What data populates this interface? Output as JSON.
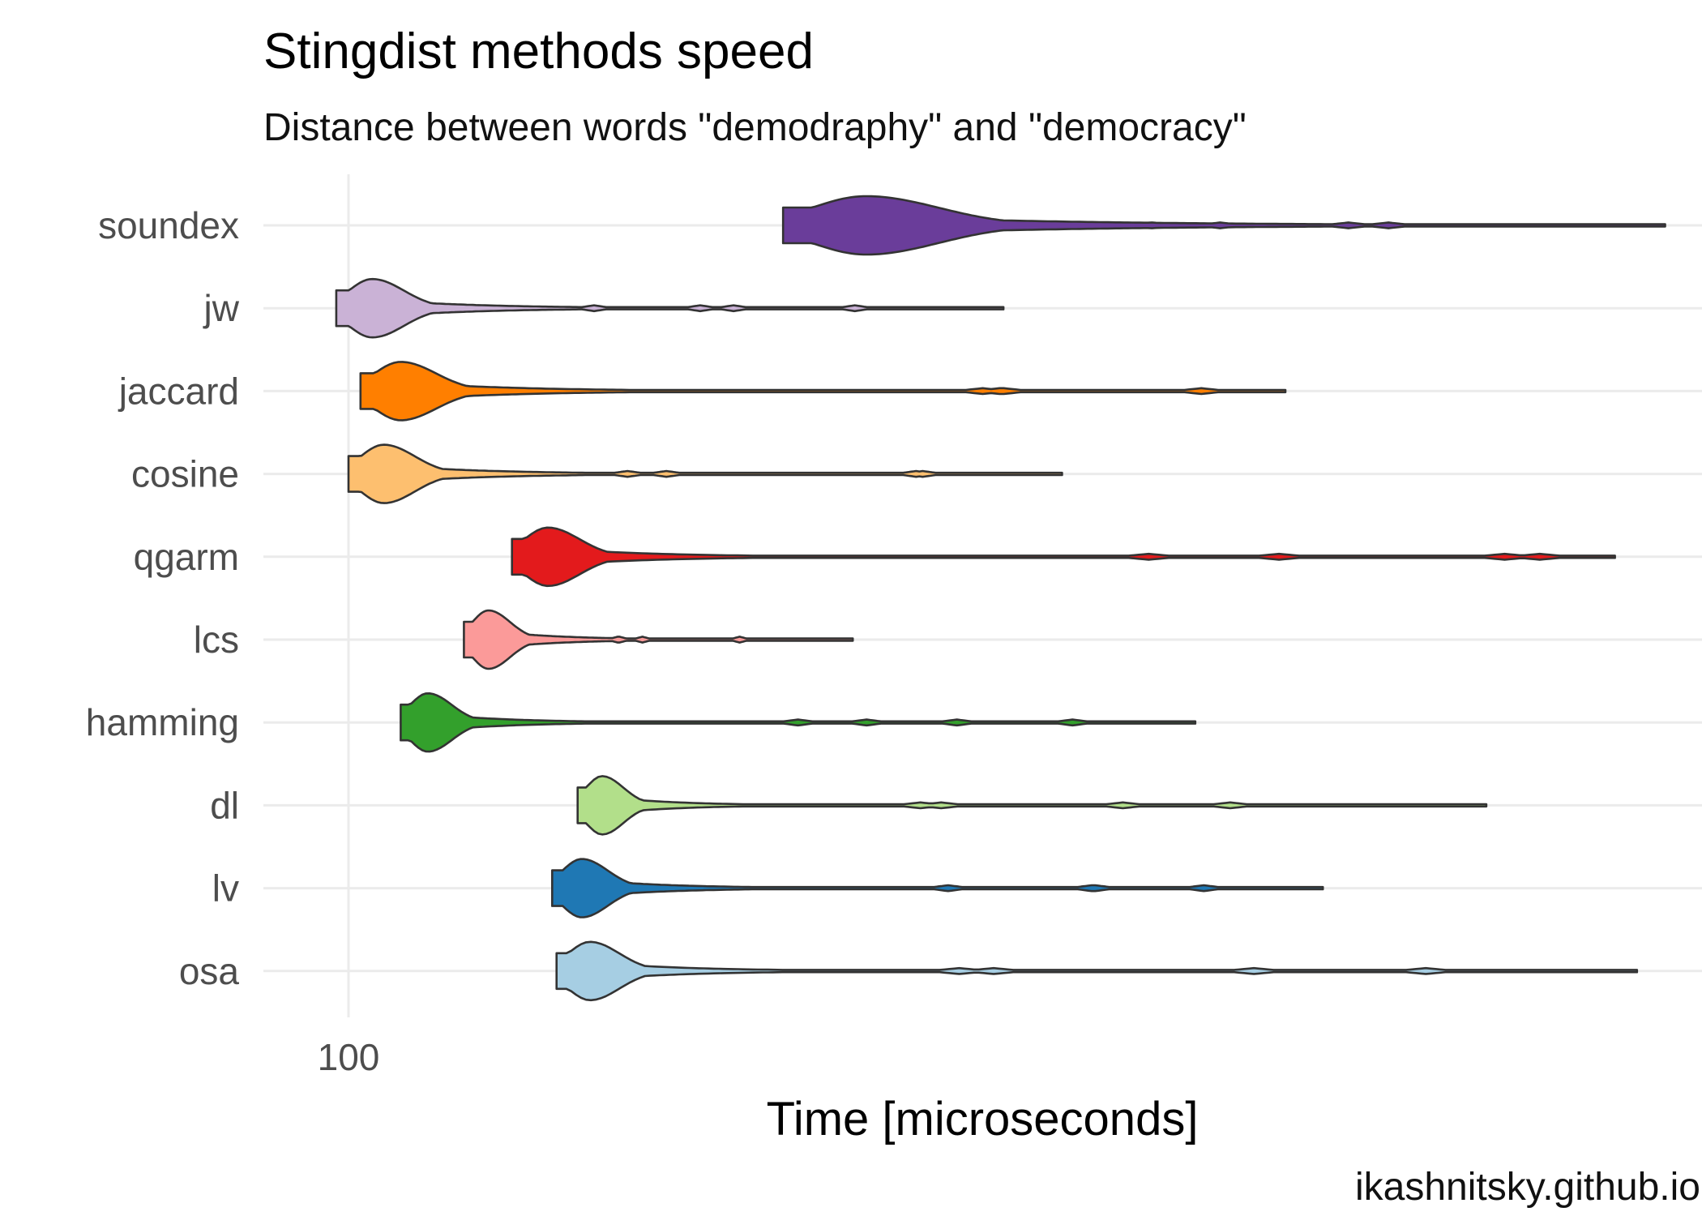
{
  "chart_data": {
    "type": "violin",
    "title": "Stingdist methods speed",
    "subtitle": "Distance between words \"demodraphy\" and \"democracy\"",
    "xlabel": "Time [microseconds]",
    "ylabel": "",
    "caption": "ikashnitsky.github.io",
    "x_scale": "log10",
    "xlim": [
      85,
      900
    ],
    "x_ticks": [
      100
    ],
    "x_tick_labels": [
      "100"
    ],
    "grid": true,
    "legend": "none",
    "categories": [
      "soundex",
      "jw",
      "jaccard",
      "cosine",
      "qgarm",
      "lcs",
      "hamming",
      "dl",
      "lv",
      "osa"
    ],
    "series": [
      {
        "category": "soundex",
        "color": "#6a3d9a",
        "min": 205,
        "mode": 235,
        "max": 880
      },
      {
        "category": "jw",
        "color": "#cab2d6",
        "min": 98,
        "mode": 104,
        "max": 295
      },
      {
        "category": "jaccard",
        "color": "#ff7f00",
        "min": 102,
        "mode": 109,
        "max": 470
      },
      {
        "category": "cosine",
        "color": "#fdbf6f",
        "min": 100,
        "mode": 106,
        "max": 325
      },
      {
        "category": "qgarm",
        "color": "#e31a1c",
        "min": 131,
        "mode": 139,
        "max": 810
      },
      {
        "category": "lcs",
        "color": "#fb9a99",
        "min": 121,
        "mode": 126,
        "max": 230
      },
      {
        "category": "hamming",
        "color": "#33a02c",
        "min": 109,
        "mode": 114,
        "max": 405
      },
      {
        "category": "dl",
        "color": "#b2df8a",
        "min": 146,
        "mode": 152,
        "max": 655
      },
      {
        "category": "lv",
        "color": "#1f78b4",
        "min": 140,
        "mode": 147,
        "max": 500
      },
      {
        "category": "osa",
        "color": "#a6cee3",
        "min": 141,
        "mode": 149,
        "max": 840
      }
    ]
  }
}
